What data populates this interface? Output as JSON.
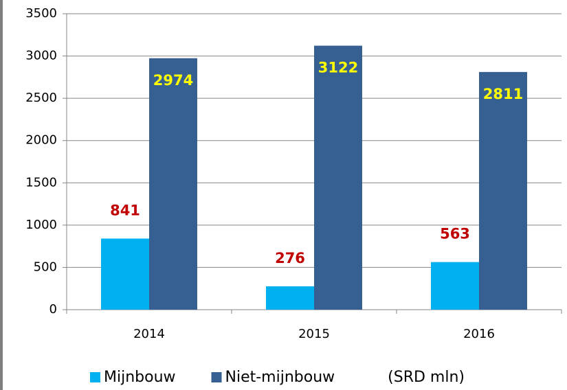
{
  "chart_data": {
    "type": "bar",
    "categories": [
      "2014",
      "2015",
      "2016"
    ],
    "series": [
      {
        "name": "Mijnbouw",
        "color": "#00b0f0",
        "label_color": "#c00000",
        "values": [
          841,
          276,
          563
        ]
      },
      {
        "name": "Niet-mijnbouw",
        "color": "#376092",
        "label_color": "#ffff00",
        "values": [
          2974,
          3122,
          2811
        ]
      }
    ],
    "annotation": "(SRD mln)",
    "ylim": [
      0,
      3500
    ],
    "yticks": [
      0,
      500,
      1000,
      1500,
      2000,
      2500,
      3000,
      3500
    ],
    "grid": true,
    "legend": "bottom"
  }
}
